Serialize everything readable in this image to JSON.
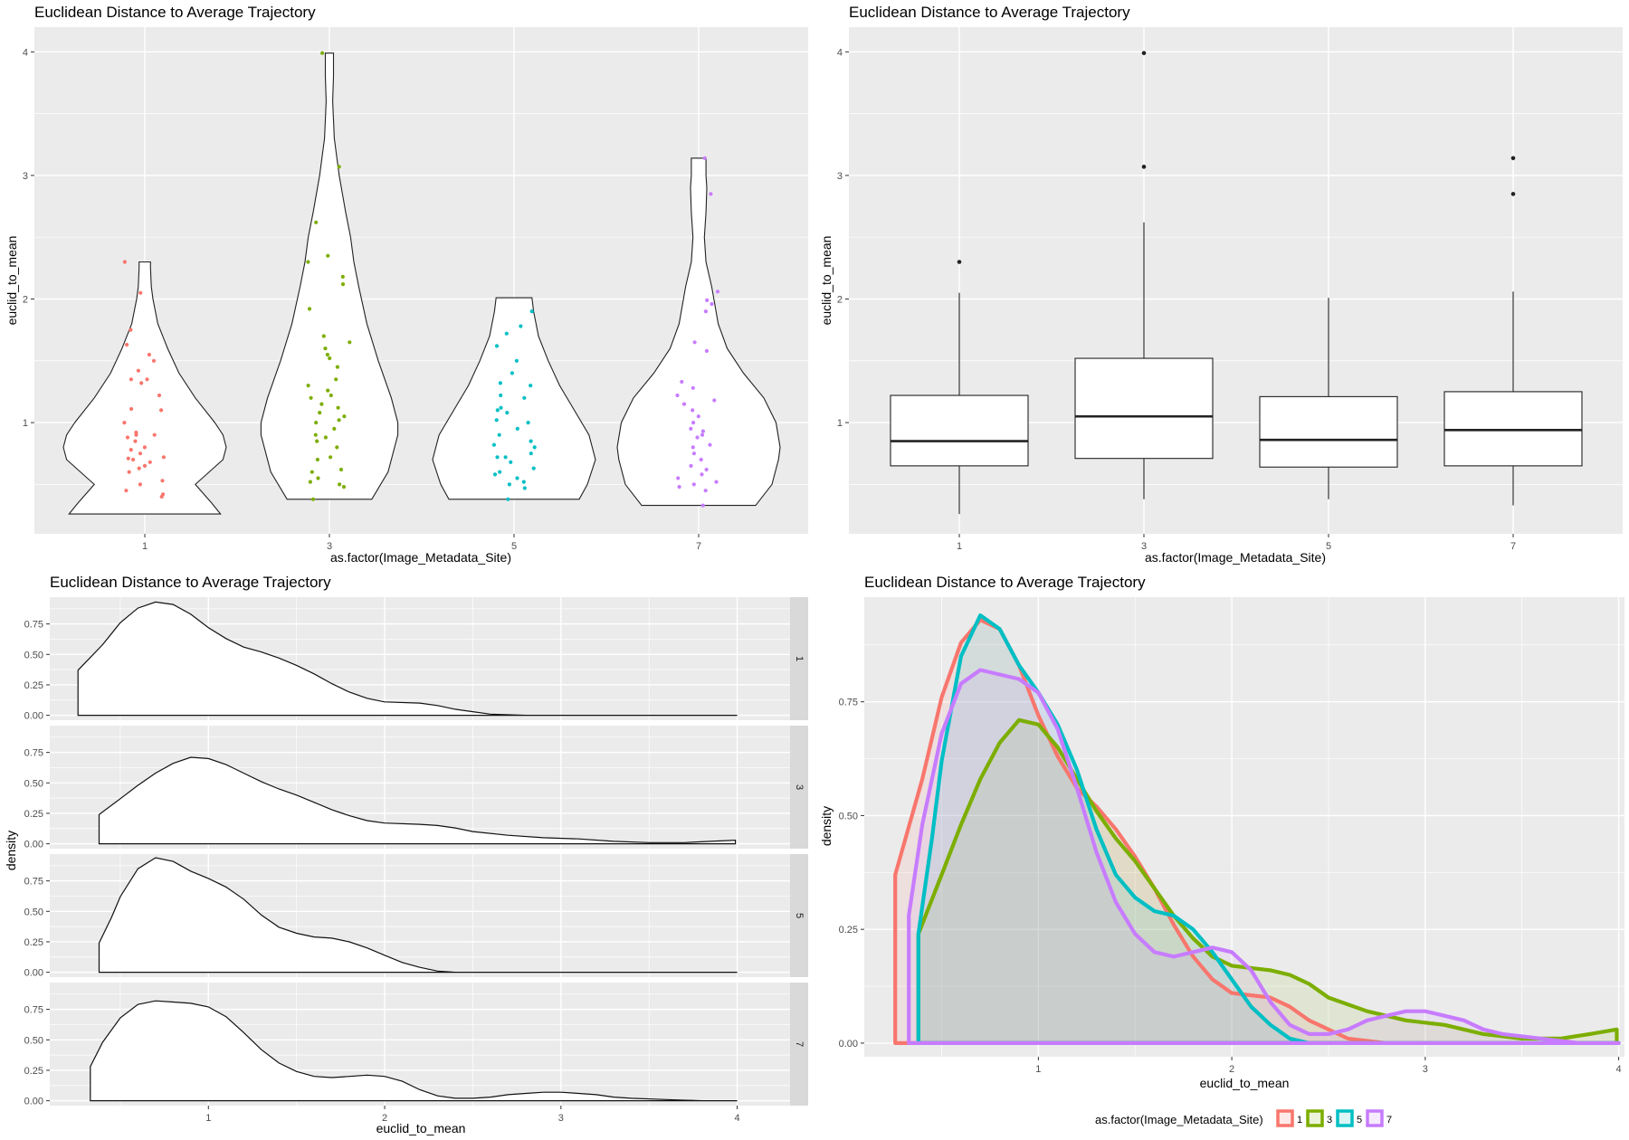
{
  "colors": {
    "1": "#F8766D",
    "3": "#7CAE00",
    "5": "#00BFC4",
    "7": "#C77CFF"
  },
  "chart_data": [
    {
      "type": "violin",
      "title": "Euclidean Distance to Average Trajectory",
      "xlabel": "as.factor(Image_Metadata_Site)",
      "ylabel": "euclid_to_mean",
      "categories": [
        "1",
        "3",
        "5",
        "7"
      ],
      "ylim": [
        0.1,
        4.2
      ],
      "yticks": [
        1,
        2,
        3,
        4
      ],
      "grid": true,
      "series": [
        {
          "category": "1",
          "range": [
            0.26,
            2.3
          ],
          "profile": [
            [
              0.26,
              0.93
            ],
            [
              0.35,
              0.82
            ],
            [
              0.5,
              0.62
            ],
            [
              0.7,
              0.96
            ],
            [
              0.8,
              1.0
            ],
            [
              0.9,
              0.96
            ],
            [
              1.0,
              0.86
            ],
            [
              1.2,
              0.62
            ],
            [
              1.4,
              0.42
            ],
            [
              1.6,
              0.28
            ],
            [
              1.8,
              0.16
            ],
            [
              2.0,
              0.1
            ],
            [
              2.1,
              0.08
            ],
            [
              2.25,
              0.07
            ],
            [
              2.3,
              0.07
            ]
          ],
          "points": [
            0.4,
            0.42,
            0.45,
            0.5,
            0.53,
            0.6,
            0.63,
            0.65,
            0.68,
            0.7,
            0.71,
            0.72,
            0.75,
            0.78,
            0.8,
            0.85,
            0.88,
            0.9,
            0.9,
            0.92,
            1.0,
            1.1,
            1.11,
            1.22,
            1.32,
            1.35,
            1.35,
            1.42,
            1.5,
            1.55,
            1.63,
            1.75,
            2.05,
            2.3
          ]
        },
        {
          "category": "3",
          "range": [
            0.38,
            3.99
          ],
          "profile": [
            [
              0.38,
              0.52
            ],
            [
              0.6,
              0.72
            ],
            [
              0.9,
              0.84
            ],
            [
              1.0,
              0.84
            ],
            [
              1.2,
              0.76
            ],
            [
              1.5,
              0.6
            ],
            [
              1.8,
              0.46
            ],
            [
              2.1,
              0.36
            ],
            [
              2.3,
              0.3
            ],
            [
              2.5,
              0.26
            ],
            [
              2.7,
              0.2
            ],
            [
              3.0,
              0.12
            ],
            [
              3.3,
              0.06
            ],
            [
              3.6,
              0.04
            ],
            [
              3.8,
              0.05
            ],
            [
              3.9,
              0.05
            ],
            [
              3.99,
              0.05
            ]
          ],
          "points": [
            0.38,
            0.48,
            0.5,
            0.52,
            0.55,
            0.6,
            0.62,
            0.7,
            0.72,
            0.8,
            0.85,
            0.88,
            0.9,
            0.95,
            1.0,
            1.02,
            1.05,
            1.08,
            1.12,
            1.15,
            1.2,
            1.22,
            1.26,
            1.3,
            1.35,
            1.45,
            1.52,
            1.55,
            1.6,
            1.65,
            1.7,
            1.92,
            2.12,
            2.18,
            2.3,
            2.35,
            2.62,
            3.07,
            3.99
          ]
        },
        {
          "category": "5",
          "range": [
            0.38,
            2.01
          ],
          "profile": [
            [
              0.38,
              0.8
            ],
            [
              0.5,
              0.9
            ],
            [
              0.7,
              1.0
            ],
            [
              0.9,
              0.92
            ],
            [
              1.1,
              0.74
            ],
            [
              1.3,
              0.56
            ],
            [
              1.5,
              0.42
            ],
            [
              1.7,
              0.3
            ],
            [
              1.9,
              0.24
            ],
            [
              2.01,
              0.22
            ]
          ],
          "points": [
            0.38,
            0.47,
            0.5,
            0.52,
            0.55,
            0.58,
            0.6,
            0.63,
            0.68,
            0.72,
            0.72,
            0.75,
            0.8,
            0.82,
            0.85,
            0.9,
            0.95,
            1.0,
            1.02,
            1.08,
            1.1,
            1.12,
            1.2,
            1.22,
            1.3,
            1.32,
            1.4,
            1.5,
            1.62,
            1.72,
            1.78,
            1.9
          ]
        },
        {
          "category": "7",
          "range": [
            0.33,
            3.14
          ],
          "profile": [
            [
              0.33,
              0.7
            ],
            [
              0.5,
              0.9
            ],
            [
              0.7,
              0.98
            ],
            [
              0.8,
              1.0
            ],
            [
              1.0,
              0.95
            ],
            [
              1.2,
              0.8
            ],
            [
              1.4,
              0.55
            ],
            [
              1.6,
              0.35
            ],
            [
              1.8,
              0.24
            ],
            [
              1.95,
              0.2
            ],
            [
              2.1,
              0.16
            ],
            [
              2.3,
              0.09
            ],
            [
              2.5,
              0.07
            ],
            [
              2.7,
              0.09
            ],
            [
              2.9,
              0.1
            ],
            [
              3.0,
              0.09
            ],
            [
              3.14,
              0.09
            ]
          ],
          "points": [
            0.33,
            0.45,
            0.48,
            0.5,
            0.52,
            0.55,
            0.58,
            0.62,
            0.65,
            0.7,
            0.75,
            0.8,
            0.82,
            0.88,
            0.9,
            0.93,
            0.95,
            1.0,
            1.05,
            1.1,
            1.15,
            1.18,
            1.22,
            1.28,
            1.33,
            1.58,
            1.65,
            1.9,
            1.96,
            1.99,
            2.06,
            2.85,
            3.14
          ]
        }
      ]
    },
    {
      "type": "box",
      "title": "Euclidean Distance to Average Trajectory",
      "xlabel": "as.factor(Image_Metadata_Site)",
      "ylabel": "euclid_to_mean",
      "categories": [
        "1",
        "3",
        "5",
        "7"
      ],
      "ylim": [
        0.1,
        4.2
      ],
      "yticks": [
        1,
        2,
        3,
        4
      ],
      "grid": true,
      "boxes": [
        {
          "category": "1",
          "min": 0.26,
          "q1": 0.65,
          "median": 0.85,
          "q3": 1.22,
          "max": 2.05,
          "outliers": [
            2.3
          ]
        },
        {
          "category": "3",
          "min": 0.38,
          "q1": 0.71,
          "median": 1.05,
          "q3": 1.52,
          "max": 2.62,
          "outliers": [
            3.07,
            3.99
          ]
        },
        {
          "category": "5",
          "min": 0.38,
          "q1": 0.64,
          "median": 0.86,
          "q3": 1.21,
          "max": 2.01,
          "outliers": []
        },
        {
          "category": "7",
          "min": 0.33,
          "q1": 0.65,
          "median": 0.94,
          "q3": 1.25,
          "max": 2.06,
          "outliers": [
            2.85,
            3.14
          ]
        }
      ]
    },
    {
      "type": "area",
      "title": "Euclidean Distance to Average Trajectory",
      "xlabel": "euclid_to_mean",
      "ylabel": "density",
      "xlim": [
        0.1,
        4.3
      ],
      "ylim": [
        -0.04,
        0.97
      ],
      "xticks": [
        1,
        2,
        3,
        4
      ],
      "yticks": [
        "0.00",
        "0.25",
        "0.50",
        "0.75"
      ],
      "grid": true,
      "facets": [
        "1",
        "3",
        "5",
        "7"
      ],
      "series": [
        {
          "name": "1",
          "points": [
            [
              0.26,
              0.0
            ],
            [
              0.26,
              0.37
            ],
            [
              0.4,
              0.58
            ],
            [
              0.5,
              0.76
            ],
            [
              0.6,
              0.88
            ],
            [
              0.7,
              0.93
            ],
            [
              0.8,
              0.91
            ],
            [
              0.9,
              0.83
            ],
            [
              1.0,
              0.72
            ],
            [
              1.1,
              0.63
            ],
            [
              1.2,
              0.56
            ],
            [
              1.3,
              0.52
            ],
            [
              1.4,
              0.47
            ],
            [
              1.5,
              0.41
            ],
            [
              1.6,
              0.34
            ],
            [
              1.7,
              0.26
            ],
            [
              1.8,
              0.19
            ],
            [
              1.9,
              0.14
            ],
            [
              2.0,
              0.11
            ],
            [
              2.2,
              0.1
            ],
            [
              2.3,
              0.08
            ],
            [
              2.4,
              0.05
            ],
            [
              2.5,
              0.03
            ],
            [
              2.6,
              0.01
            ],
            [
              2.8,
              0.0
            ],
            [
              4.0,
              0.0
            ]
          ]
        },
        {
          "name": "3",
          "points": [
            [
              0.38,
              0.0
            ],
            [
              0.38,
              0.24
            ],
            [
              0.5,
              0.37
            ],
            [
              0.6,
              0.48
            ],
            [
              0.7,
              0.58
            ],
            [
              0.8,
              0.66
            ],
            [
              0.9,
              0.71
            ],
            [
              1.0,
              0.7
            ],
            [
              1.1,
              0.65
            ],
            [
              1.2,
              0.58
            ],
            [
              1.3,
              0.51
            ],
            [
              1.4,
              0.45
            ],
            [
              1.5,
              0.4
            ],
            [
              1.6,
              0.34
            ],
            [
              1.7,
              0.28
            ],
            [
              1.8,
              0.23
            ],
            [
              1.9,
              0.19
            ],
            [
              2.0,
              0.17
            ],
            [
              2.2,
              0.16
            ],
            [
              2.3,
              0.15
            ],
            [
              2.4,
              0.13
            ],
            [
              2.5,
              0.1
            ],
            [
              2.7,
              0.07
            ],
            [
              2.9,
              0.05
            ],
            [
              3.1,
              0.04
            ],
            [
              3.3,
              0.02
            ],
            [
              3.5,
              0.01
            ],
            [
              3.7,
              0.01
            ],
            [
              3.85,
              0.02
            ],
            [
              3.99,
              0.03
            ],
            [
              3.99,
              0.0
            ]
          ]
        },
        {
          "name": "5",
          "points": [
            [
              0.38,
              0.0
            ],
            [
              0.38,
              0.24
            ],
            [
              0.45,
              0.45
            ],
            [
              0.5,
              0.62
            ],
            [
              0.6,
              0.85
            ],
            [
              0.7,
              0.94
            ],
            [
              0.8,
              0.91
            ],
            [
              0.9,
              0.83
            ],
            [
              1.0,
              0.77
            ],
            [
              1.1,
              0.7
            ],
            [
              1.2,
              0.6
            ],
            [
              1.3,
              0.47
            ],
            [
              1.4,
              0.37
            ],
            [
              1.5,
              0.32
            ],
            [
              1.6,
              0.29
            ],
            [
              1.7,
              0.28
            ],
            [
              1.8,
              0.25
            ],
            [
              1.9,
              0.2
            ],
            [
              2.0,
              0.14
            ],
            [
              2.1,
              0.08
            ],
            [
              2.2,
              0.04
            ],
            [
              2.3,
              0.01
            ],
            [
              2.4,
              0.0
            ],
            [
              4.0,
              0.0
            ]
          ]
        },
        {
          "name": "7",
          "points": [
            [
              0.33,
              0.0
            ],
            [
              0.33,
              0.28
            ],
            [
              0.4,
              0.48
            ],
            [
              0.5,
              0.68
            ],
            [
              0.6,
              0.79
            ],
            [
              0.7,
              0.82
            ],
            [
              0.8,
              0.81
            ],
            [
              0.9,
              0.8
            ],
            [
              1.0,
              0.77
            ],
            [
              1.1,
              0.69
            ],
            [
              1.2,
              0.56
            ],
            [
              1.3,
              0.42
            ],
            [
              1.4,
              0.31
            ],
            [
              1.5,
              0.24
            ],
            [
              1.6,
              0.2
            ],
            [
              1.7,
              0.19
            ],
            [
              1.8,
              0.2
            ],
            [
              1.9,
              0.21
            ],
            [
              2.0,
              0.2
            ],
            [
              2.1,
              0.16
            ],
            [
              2.2,
              0.09
            ],
            [
              2.3,
              0.04
            ],
            [
              2.4,
              0.02
            ],
            [
              2.5,
              0.02
            ],
            [
              2.6,
              0.03
            ],
            [
              2.7,
              0.05
            ],
            [
              2.8,
              0.06
            ],
            [
              2.9,
              0.07
            ],
            [
              3.0,
              0.07
            ],
            [
              3.1,
              0.06
            ],
            [
              3.2,
              0.05
            ],
            [
              3.3,
              0.03
            ],
            [
              3.4,
              0.02
            ],
            [
              3.6,
              0.01
            ],
            [
              3.8,
              0.0
            ],
            [
              4.0,
              0.0
            ]
          ]
        }
      ]
    },
    {
      "type": "area",
      "title": "Euclidean Distance to Average Trajectory",
      "xlabel": "euclid_to_mean",
      "ylabel": "density",
      "xlim": [
        0.1,
        4.03
      ],
      "ylim": [
        -0.03,
        0.98
      ],
      "xticks": [
        1,
        2,
        3,
        4
      ],
      "yticks": [
        "0.00",
        "0.25",
        "0.50",
        "0.75"
      ],
      "grid": true,
      "legend": {
        "title": "as.factor(Image_Metadata_Site)",
        "position": "bottom",
        "entries": [
          "1",
          "3",
          "5",
          "7"
        ]
      },
      "series_ref": "same as panel 3"
    }
  ]
}
